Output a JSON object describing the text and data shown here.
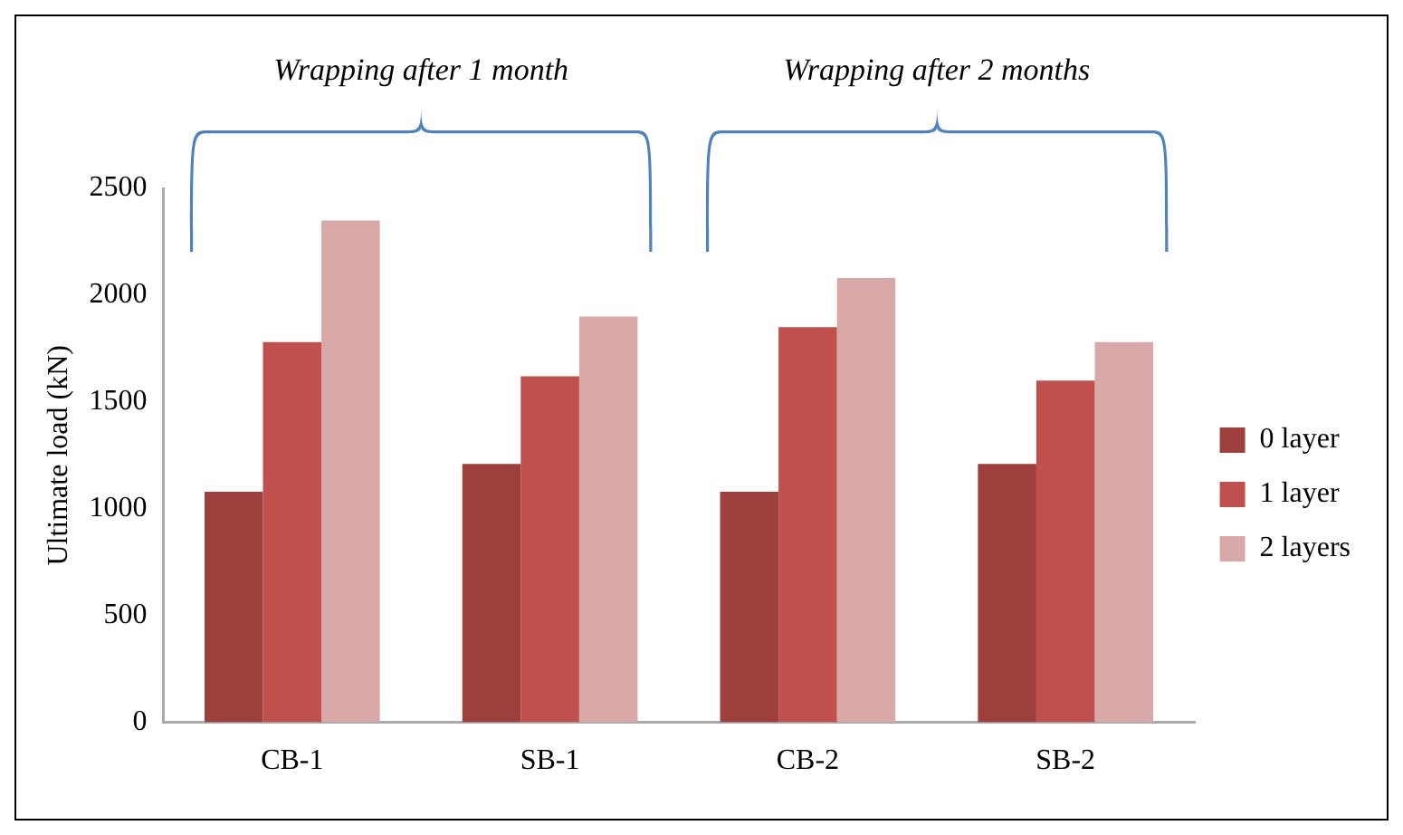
{
  "chart_data": {
    "type": "bar",
    "ylabel": "Ultimate load (kN)",
    "categories": [
      "CB-1",
      "SB-1",
      "CB-2",
      "SB-2"
    ],
    "series": [
      {
        "name": "0 layer",
        "color": "#9c3f3d",
        "values": [
          1080,
          1210,
          1080,
          1210
        ]
      },
      {
        "name": "1 layer",
        "color": "#c0504d",
        "values": [
          1780,
          1620,
          1850,
          1600
        ]
      },
      {
        "name": "2 layers",
        "color": "#d9a8a8",
        "values": [
          2350,
          1900,
          2080,
          1780
        ]
      }
    ],
    "ylim": [
      0,
      2500
    ],
    "yticks": [
      0,
      500,
      1000,
      1500,
      2000,
      2500
    ],
    "grid": false,
    "legend": "right",
    "annotations": [
      "Wrapping after 1 month",
      "Wrapping after 2 months"
    ]
  }
}
